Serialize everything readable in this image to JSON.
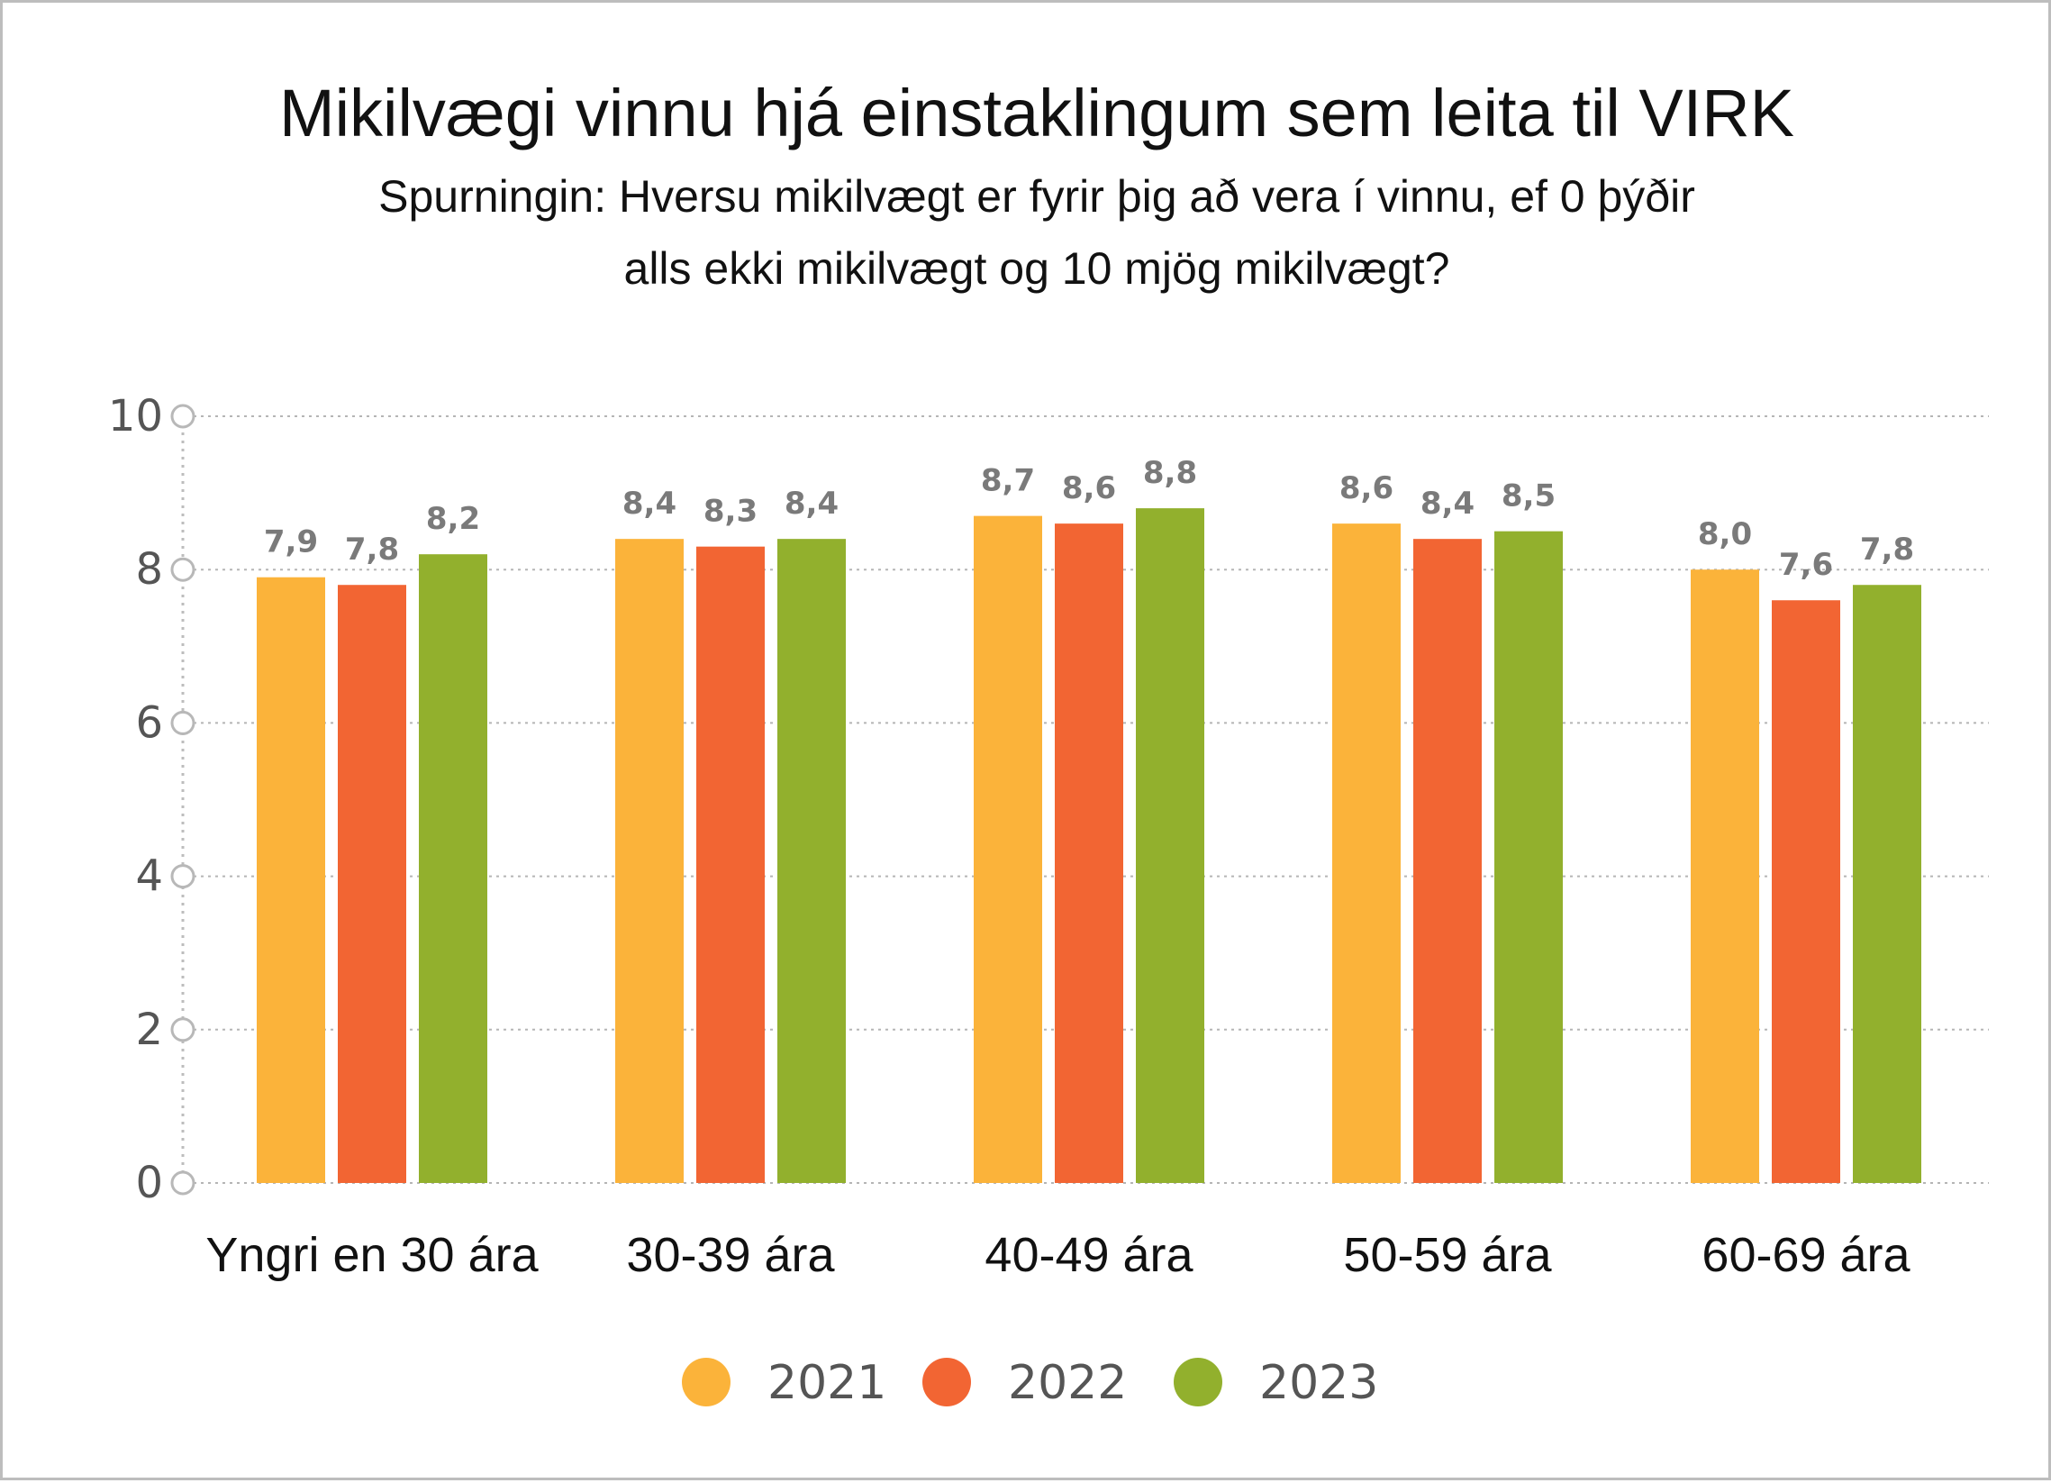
{
  "chart_data": {
    "type": "bar",
    "title": "Mikilvægi vinnu hjá einstaklingum sem leita til VIRK",
    "subtitle_line1": "Spurningin: Hversu mikilvægt er fyrir þig að vera í vinnu, ef 0 þýðir",
    "subtitle_line2": "alls ekki mikilvægt og 10 mjög mikilvægt?",
    "xlabel": "",
    "ylabel": "",
    "ylim": [
      0,
      10
    ],
    "yticks": [
      "0",
      "2",
      "4",
      "6",
      "8",
      "10"
    ],
    "grid": true,
    "legend_position": "bottom",
    "categories": [
      "Yngri en 30 ára",
      "30-39 ára",
      "40-49 ára",
      "50-59 ára",
      "60-69 ára"
    ],
    "series": [
      {
        "name": "2021",
        "color": "#fbb33a",
        "values": [
          7.9,
          8.4,
          8.7,
          8.6,
          8.0
        ],
        "labels": [
          "7,9",
          "8,4",
          "8,7",
          "8,6",
          "8,0"
        ]
      },
      {
        "name": "2022",
        "color": "#f26533",
        "values": [
          7.8,
          8.3,
          8.6,
          8.4,
          7.6
        ],
        "labels": [
          "7,8",
          "8,3",
          "8,6",
          "8,4",
          "7,6"
        ]
      },
      {
        "name": "2023",
        "color": "#92b02d",
        "values": [
          8.2,
          8.4,
          8.8,
          8.5,
          7.8
        ],
        "labels": [
          "8,2",
          "8,4",
          "8,8",
          "8,5",
          "7,8"
        ]
      }
    ]
  }
}
